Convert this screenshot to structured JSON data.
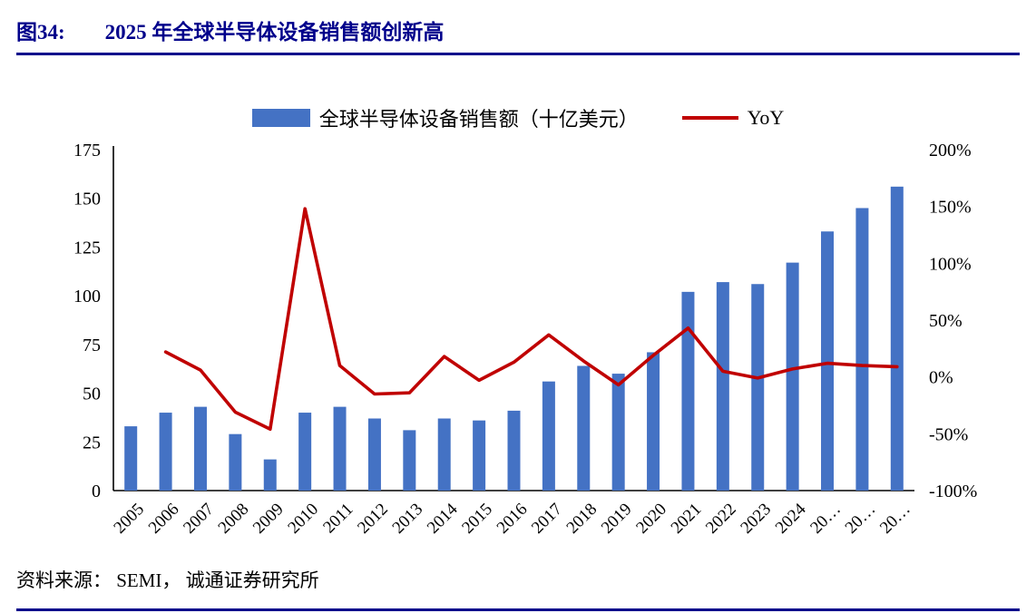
{
  "header": {
    "figure_label": "图34:",
    "title": "2025 年全球半导体设备销售额创新高"
  },
  "legend": {
    "bar_label": "全球半导体设备销售额（十亿美元）",
    "line_label": "YoY"
  },
  "footer": {
    "source": "资料来源： SEMI， 诚通证券研究所"
  },
  "colors": {
    "accent_navy": "#00008B",
    "bar": "#4472C4",
    "line": "#C00000",
    "axis": "#000000",
    "text": "#000000"
  },
  "chart_data": {
    "type": "bar",
    "title": "2025 年全球半导体设备销售额创新高",
    "legend_position": "top",
    "grid": false,
    "categories": [
      "2005",
      "2006",
      "2007",
      "2008",
      "2009",
      "2010",
      "2011",
      "2012",
      "2013",
      "2014",
      "2015",
      "2016",
      "2017",
      "2018",
      "2019",
      "2020",
      "2021",
      "2022",
      "2023",
      "2024",
      "20…",
      "20…",
      "20…"
    ],
    "series": [
      {
        "name": "全球半导体设备销售额（十亿美元）",
        "type": "bar",
        "axis": "left",
        "values": [
          33,
          40,
          43,
          29,
          16,
          40,
          43,
          37,
          31,
          37,
          36,
          41,
          56,
          64,
          60,
          71,
          102,
          107,
          106,
          117,
          133,
          145,
          156
        ]
      },
      {
        "name": "YoY",
        "type": "line",
        "axis": "right",
        "unit": "%",
        "values": [
          null,
          22,
          6,
          -31,
          -46,
          148,
          10,
          -15,
          -14,
          18,
          -3,
          13,
          37,
          14,
          -7,
          19,
          43,
          5,
          -1,
          7,
          12,
          10,
          9
        ]
      }
    ],
    "left_axis": {
      "min": 0,
      "max": 175,
      "ticks": [
        "175",
        "150",
        "125",
        "100",
        "75",
        "50",
        "25",
        "0"
      ]
    },
    "right_axis": {
      "min": -100,
      "max": 200,
      "ticks": [
        "200%",
        "150%",
        "100%",
        "50%",
        "0%",
        "-50%",
        "-100%"
      ]
    }
  }
}
